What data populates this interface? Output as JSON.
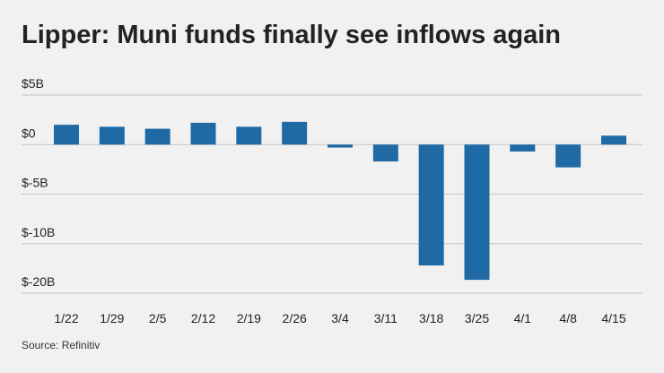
{
  "chart_data": {
    "type": "bar",
    "title": "Lipper: Muni funds finally see inflows again",
    "source": "Source: Refinitiv",
    "categories": [
      "1/22",
      "1/29",
      "2/5",
      "2/12",
      "2/19",
      "2/26",
      "3/4",
      "3/11",
      "3/18",
      "3/25",
      "4/1",
      "4/8",
      "4/15"
    ],
    "values": [
      2.0,
      1.8,
      1.6,
      2.2,
      1.8,
      2.3,
      -0.3,
      -1.7,
      -14.4,
      -17.3,
      -0.7,
      -2.3,
      0.9
    ],
    "color": "#1f6aa5",
    "ylim": [
      -20,
      5
    ],
    "yticks": [
      {
        "value": 5,
        "label": "$5B"
      },
      {
        "value": 0,
        "label": "$0"
      },
      {
        "value": -5,
        "label": "$-5B"
      },
      {
        "value": -10,
        "label": "$-10B"
      },
      {
        "value": -20,
        "label": "$-20B"
      }
    ],
    "grid": true
  }
}
